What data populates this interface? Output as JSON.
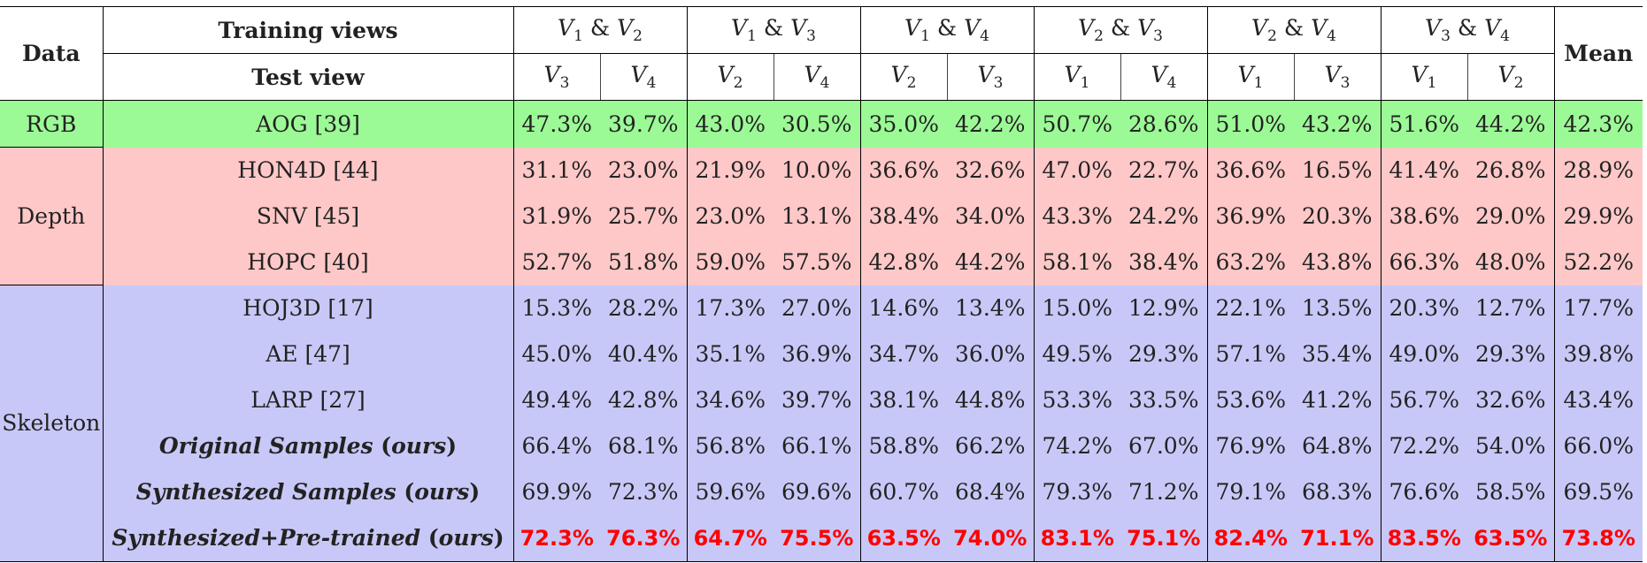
{
  "header": {
    "data_label": "Data",
    "training_views_label": "Training views",
    "test_view_label": "Test view",
    "mean_label": "Mean",
    "train_pairs": [
      {
        "a": "V",
        "a_sub": "1",
        "amp": " & ",
        "b": "V",
        "b_sub": "2"
      },
      {
        "a": "V",
        "a_sub": "1",
        "amp": " & ",
        "b": "V",
        "b_sub": "3"
      },
      {
        "a": "V",
        "a_sub": "1",
        "amp": " & ",
        "b": "V",
        "b_sub": "4"
      },
      {
        "a": "V",
        "a_sub": "2",
        "amp": " & ",
        "b": "V",
        "b_sub": "3"
      },
      {
        "a": "V",
        "a_sub": "2",
        "amp": " & ",
        "b": "V",
        "b_sub": "4"
      },
      {
        "a": "V",
        "a_sub": "3",
        "amp": " & ",
        "b": "V",
        "b_sub": "4"
      }
    ],
    "test_views": [
      {
        "v": "V",
        "sub": "3"
      },
      {
        "v": "V",
        "sub": "4"
      },
      {
        "v": "V",
        "sub": "2"
      },
      {
        "v": "V",
        "sub": "4"
      },
      {
        "v": "V",
        "sub": "2"
      },
      {
        "v": "V",
        "sub": "3"
      },
      {
        "v": "V",
        "sub": "1"
      },
      {
        "v": "V",
        "sub": "4"
      },
      {
        "v": "V",
        "sub": "1"
      },
      {
        "v": "V",
        "sub": "3"
      },
      {
        "v": "V",
        "sub": "1"
      },
      {
        "v": "V",
        "sub": "2"
      }
    ]
  },
  "groups": {
    "rgb": "RGB",
    "depth": "Depth",
    "skeleton": "Skeleton"
  },
  "rows": [
    {
      "method": "AOG [39]",
      "values": [
        "47.3%",
        "39.7%",
        "43.0%",
        "30.5%",
        "35.0%",
        "42.2%",
        "50.7%",
        "28.6%",
        "51.0%",
        "43.2%",
        "51.6%",
        "44.2%"
      ],
      "mean": "42.3%"
    },
    {
      "method": "HON4D [44]",
      "values": [
        "31.1%",
        "23.0%",
        "21.9%",
        "10.0%",
        "36.6%",
        "32.6%",
        "47.0%",
        "22.7%",
        "36.6%",
        "16.5%",
        "41.4%",
        "26.8%"
      ],
      "mean": "28.9%"
    },
    {
      "method": "SNV [45]",
      "values": [
        "31.9%",
        "25.7%",
        "23.0%",
        "13.1%",
        "38.4%",
        "34.0%",
        "43.3%",
        "24.2%",
        "36.9%",
        "20.3%",
        "38.6%",
        "29.0%"
      ],
      "mean": "29.9%"
    },
    {
      "method": "HOPC [40]",
      "values": [
        "52.7%",
        "51.8%",
        "59.0%",
        "57.5%",
        "42.8%",
        "44.2%",
        "58.1%",
        "38.4%",
        "63.2%",
        "43.8%",
        "66.3%",
        "48.0%"
      ],
      "mean": "52.2%"
    },
    {
      "method": "HOJ3D [17]",
      "values": [
        "15.3%",
        "28.2%",
        "17.3%",
        "27.0%",
        "14.6%",
        "13.4%",
        "15.0%",
        "12.9%",
        "22.1%",
        "13.5%",
        "20.3%",
        "12.7%"
      ],
      "mean": "17.7%"
    },
    {
      "method": "AE [47]",
      "values": [
        "45.0%",
        "40.4%",
        "35.1%",
        "36.9%",
        "34.7%",
        "36.0%",
        "49.5%",
        "29.3%",
        "57.1%",
        "35.4%",
        "49.0%",
        "29.3%"
      ],
      "mean": "39.8%"
    },
    {
      "method": "LARP [27]",
      "values": [
        "49.4%",
        "42.8%",
        "34.6%",
        "39.7%",
        "38.1%",
        "44.8%",
        "53.3%",
        "33.5%",
        "53.6%",
        "41.2%",
        "56.7%",
        "32.6%"
      ],
      "mean": "43.4%"
    },
    {
      "method": "Original Samples",
      "suffix": " (ours)",
      "values": [
        "66.4%",
        "68.1%",
        "56.8%",
        "66.1%",
        "58.8%",
        "66.2%",
        "74.2%",
        "67.0%",
        "76.9%",
        "64.8%",
        "72.2%",
        "54.0%"
      ],
      "mean": "66.0%"
    },
    {
      "method": "Synthesized Samples",
      "suffix": " (ours)",
      "values": [
        "69.9%",
        "72.3%",
        "59.6%",
        "69.6%",
        "60.7%",
        "68.4%",
        "79.3%",
        "71.2%",
        "79.1%",
        "68.3%",
        "76.6%",
        "58.5%"
      ],
      "mean": "69.5%"
    },
    {
      "method": "Synthesized+Pre-trained",
      "suffix": " (ours)",
      "values": [
        "72.3%",
        "76.3%",
        "64.7%",
        "75.5%",
        "63.5%",
        "74.0%",
        "83.1%",
        "75.1%",
        "82.4%",
        "71.1%",
        "83.5%",
        "63.5%"
      ],
      "mean": "73.8%"
    }
  ],
  "colors": {
    "rgb_bg": "#9cfa96",
    "depth_bg": "#ffc8c8",
    "skeleton_bg": "#c8c8f8",
    "best_text": "#ff0000"
  }
}
